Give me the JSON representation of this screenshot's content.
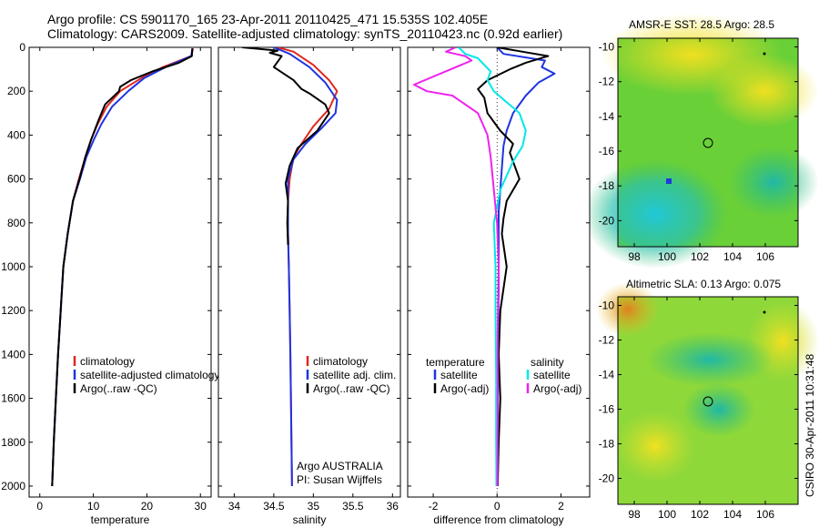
{
  "header": {
    "line1": "Argo profile: CS 5901170_165 23-Apr-2011 20110425_471 15.535S 102.405E",
    "line2": "Climatology: CARS2009. Satellite-adjusted climatology: synTS_20110423.nc (0.92d earlier)"
  },
  "maps": {
    "sst_title": "AMSR-E SST: 28.5 Argo: 28.5",
    "sla_title": "Altimetric SLA: 0.13 Argo: 0.075"
  },
  "side_label": "CSIRO 30-Apr-2011 10:31:48",
  "colors": {
    "climatology": "#e0271f",
    "satellite": "#1f35e0",
    "argo": "#000000",
    "satellite_sal": "#00e8e8",
    "argo_sal": "#ee22ee"
  },
  "chart_data": [
    {
      "type": "line",
      "xlabel": "temperature",
      "ylabel": "",
      "xlim": [
        -2,
        32
      ],
      "ylim": [
        2050,
        0
      ],
      "y_reversed": true,
      "xticks": [
        "0",
        "10",
        "20",
        "30"
      ],
      "xtick_values": [
        0,
        10,
        20,
        30
      ],
      "yticks": [
        "0",
        "200",
        "400",
        "600",
        "800",
        "1000",
        "1200",
        "1400",
        "1600",
        "1800",
        "2000"
      ],
      "ytick_values": [
        0,
        200,
        400,
        600,
        800,
        1000,
        1200,
        1400,
        1600,
        1800,
        2000
      ],
      "legend": [
        "climatology",
        "satellite-adjusted climatology",
        "Argo(..raw -QC)"
      ],
      "legend_colors": [
        "#e0271f",
        "#1f35e0",
        "#000000"
      ],
      "legend_position": "lower-right",
      "series": [
        {
          "name": "climatology",
          "color": "#e0271f",
          "x": [
            28.6,
            28.3,
            23,
            19,
            15,
            12.5,
            10.8,
            9.6,
            8.5,
            7.3,
            6.2,
            5.2,
            4.4,
            3.9,
            3.4,
            3.0,
            2.6,
            2.3
          ],
          "y": [
            5,
            40,
            90,
            140,
            200,
            270,
            350,
            420,
            500,
            600,
            700,
            850,
            1000,
            1200,
            1400,
            1600,
            1800,
            2000
          ]
        },
        {
          "name": "satellite-adjusted climatology",
          "color": "#1f35e0",
          "x": [
            28.5,
            28.3,
            23.5,
            19.5,
            16.5,
            13.5,
            11.5,
            10.1,
            8.7,
            7.5,
            6.2,
            5.2,
            4.4,
            3.9,
            3.4,
            3.0,
            2.6,
            2.3
          ],
          "y": [
            5,
            40,
            90,
            140,
            200,
            270,
            350,
            420,
            500,
            600,
            700,
            850,
            1000,
            1200,
            1400,
            1600,
            1800,
            2000
          ]
        },
        {
          "name": "Argo(..raw -QC)",
          "color": "#000000",
          "x": [
            28.5,
            28.4,
            26,
            21,
            17,
            15,
            14.8,
            12.2,
            11,
            9.6,
            8.5,
            7.4,
            6.2,
            5.2,
            4.4,
            3.9,
            3.4,
            3.0,
            2.6,
            2.3
          ],
          "y": [
            5,
            40,
            70,
            110,
            150,
            180,
            200,
            260,
            330,
            420,
            500,
            600,
            700,
            850,
            1000,
            1200,
            1400,
            1600,
            1800,
            2000
          ]
        }
      ]
    },
    {
      "type": "line",
      "xlabel": "salinity",
      "ylabel": "",
      "xlim": [
        33.8,
        36.1
      ],
      "ylim": [
        2050,
        0
      ],
      "y_reversed": true,
      "xticks": [
        "34",
        "34.5",
        "35",
        "35.5",
        "36"
      ],
      "xtick_values": [
        34,
        34.5,
        35,
        35.5,
        36
      ],
      "yticks": [],
      "ytick_values": [],
      "legend": [
        "climatology",
        "satellite adj. clim.",
        "Argo(..raw -QC)"
      ],
      "legend_colors": [
        "#e0271f",
        "#1f35e0",
        "#000000"
      ],
      "legend_position": "lower-right",
      "annotations": [
        "Argo AUSTRALIA",
        "PI: Susan Wijffels"
      ],
      "series": [
        {
          "name": "climatology",
          "color": "#e0271f",
          "x": [
            34.55,
            34.75,
            35.0,
            35.2,
            35.3,
            35.2,
            35.0,
            34.85,
            34.75,
            34.7,
            34.68,
            34.68,
            34.69,
            34.7,
            34.71,
            34.72,
            34.73
          ],
          "y": [
            0,
            20,
            80,
            150,
            200,
            280,
            360,
            440,
            500,
            600,
            700,
            850,
            1000,
            1200,
            1400,
            1700,
            2000
          ]
        },
        {
          "name": "satellite adj. clim.",
          "color": "#1f35e0",
          "x": [
            34.5,
            34.7,
            34.95,
            35.15,
            35.3,
            35.28,
            35.1,
            34.9,
            34.75,
            34.68,
            34.68,
            34.68,
            34.69,
            34.7,
            34.71,
            34.72,
            34.73
          ],
          "y": [
            0,
            30,
            90,
            160,
            240,
            300,
            370,
            440,
            510,
            600,
            700,
            850,
            1000,
            1200,
            1400,
            1700,
            2000
          ]
        },
        {
          "name": "Argo(..raw -QC)",
          "color": "#000000",
          "x": [
            34.1,
            34.55,
            34.45,
            34.6,
            34.5,
            34.75,
            34.85,
            34.95,
            35.15,
            35.2,
            35.05,
            34.8,
            34.7,
            34.65,
            34.68,
            34.67,
            34.68
          ],
          "y": [
            0,
            15,
            25,
            40,
            90,
            150,
            190,
            210,
            260,
            300,
            380,
            460,
            540,
            620,
            700,
            800,
            900
          ]
        }
      ]
    },
    {
      "type": "line",
      "xlabel": "difference from climatology",
      "ylabel": "",
      "xlim": [
        -2.8,
        2.9
      ],
      "ylim": [
        2050,
        0
      ],
      "y_reversed": true,
      "xticks": [
        "-2",
        "0",
        "2"
      ],
      "xtick_values": [
        -2,
        0,
        2
      ],
      "yticks": [],
      "ytick_values": [],
      "legend_headers": [
        "temperature",
        "salinity"
      ],
      "legend": [
        "satellite",
        "Argo(-adj)",
        "satellite",
        "Argo(-adj)"
      ],
      "legend_colors": [
        "#1f35e0",
        "#000000",
        "#00e8e8",
        "#ee22ee"
      ],
      "legend_position": "lower",
      "series": [
        {
          "name": "satellite",
          "color": "#1f35e0",
          "x": [
            0,
            0.2,
            1.5,
            1.4,
            1.8,
            1.3,
            0.9,
            0.5,
            0.3,
            0.2,
            0.15,
            0.1,
            0.05,
            0.05,
            0.05,
            0.03,
            0.03,
            0.02,
            0.02,
            0.02
          ],
          "y": [
            0,
            30,
            60,
            90,
            120,
            160,
            220,
            300,
            380,
            450,
            550,
            650,
            750,
            900,
            1100,
            1300,
            1500,
            1700,
            1900,
            2000
          ]
        },
        {
          "name": "Argo(-adj)",
          "color": "#000000",
          "x": [
            0,
            0.8,
            1.6,
            0.9,
            0.4,
            -0.3,
            -0.6,
            -0.4,
            -0.3,
            0.1,
            0.5,
            0.4,
            0.7,
            0.3,
            0.2,
            0.15,
            0.3,
            0.1,
            0.05,
            0.1,
            0.05,
            0.02
          ],
          "y": [
            0,
            20,
            40,
            70,
            100,
            150,
            190,
            230,
            300,
            380,
            440,
            480,
            600,
            700,
            780,
            850,
            1000,
            1200,
            1400,
            1600,
            1800,
            2000
          ]
        },
        {
          "name": "satellite",
          "color": "#00e8e8",
          "x": [
            -1.2,
            -1.0,
            -0.6,
            -0.4,
            -0.2,
            -0.3,
            -0.1,
            0.3,
            0.7,
            0.9,
            0.8,
            0.5,
            0.1,
            -0.1,
            -0.05,
            -0.05,
            -0.03,
            -0.03,
            -0.02
          ],
          "y": [
            0,
            30,
            50,
            80,
            110,
            150,
            200,
            250,
            300,
            380,
            450,
            520,
            650,
            800,
            1000,
            1200,
            1500,
            1800,
            2000
          ]
        },
        {
          "name": "Argo(-adj)",
          "color": "#ee22ee",
          "x": [
            -1.3,
            -1.6,
            -1.0,
            -0.8,
            -2.6,
            -2.2,
            -1.4,
            -1.2,
            -0.6,
            -0.3,
            -0.2,
            -0.1,
            0,
            0.05,
            0.02,
            0.02,
            0.01
          ],
          "y": [
            0,
            20,
            40,
            60,
            170,
            200,
            220,
            240,
            300,
            400,
            500,
            650,
            800,
            1000,
            1300,
            1700,
            2000
          ]
        }
      ]
    }
  ],
  "map_axes": {
    "lat_ticks": [
      "-10",
      "-12",
      "-14",
      "-16",
      "-18",
      "-20"
    ],
    "lat_tick_values": [
      -10,
      -12,
      -14,
      -16,
      -18,
      -20
    ],
    "lon_ticks": [
      "98",
      "100",
      "102",
      "104",
      "106"
    ],
    "lon_tick_values": [
      98,
      100,
      102,
      104,
      106
    ],
    "lat_range": [
      -21.5,
      -9.5
    ],
    "lon_range": [
      97,
      108
    ]
  }
}
